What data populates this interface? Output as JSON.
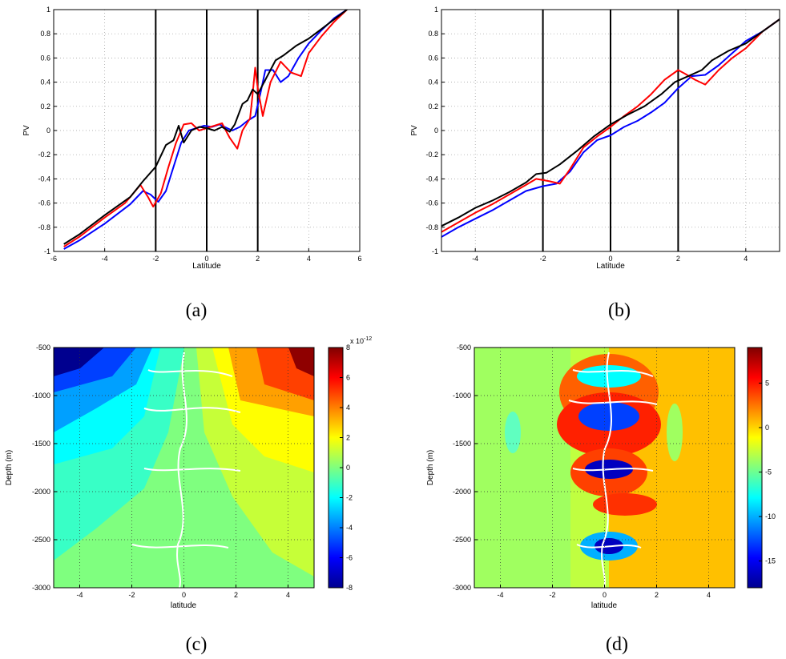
{
  "chart_data": [
    {
      "type": "line",
      "panel_label": "(a)",
      "xlabel": "Latitude",
      "ylabel": "PV",
      "xlim": [
        -6,
        6
      ],
      "ylim": [
        -1,
        1
      ],
      "xticks": [
        "-6",
        "-4",
        "-2",
        "0",
        "2",
        "4",
        "6"
      ],
      "yticks": [
        "-1",
        "-0.8",
        "-0.6",
        "-0.4",
        "-0.2",
        "0",
        "0.2",
        "0.4",
        "0.6",
        "0.8",
        "1"
      ],
      "grid": true,
      "vlines": [
        -2,
        0,
        2
      ],
      "series": [
        {
          "color": "#0000ff",
          "x": [
            -5.6,
            -5,
            -4,
            -3,
            -2.5,
            -2.2,
            -1.9,
            -1.6,
            -1.3,
            -1,
            -0.7,
            -0.4,
            -0.1,
            0.2,
            0.5,
            0.8,
            1,
            1.3,
            1.6,
            1.9,
            2.1,
            2.3,
            2.6,
            2.9,
            3.2,
            3.6,
            4,
            4.5,
            5,
            5.5
          ],
          "y": [
            -0.98,
            -0.91,
            -0.77,
            -0.61,
            -0.5,
            -0.53,
            -0.59,
            -0.5,
            -0.3,
            -0.1,
            0,
            0.02,
            0.04,
            0.03,
            0.05,
            0.02,
            0,
            0.03,
            0.08,
            0.12,
            0.3,
            0.5,
            0.5,
            0.4,
            0.45,
            0.6,
            0.72,
            0.83,
            0.93,
            1.0
          ]
        },
        {
          "color": "#ff0000",
          "x": [
            -5.6,
            -5,
            -4,
            -3.2,
            -2.8,
            -2.6,
            -2.3,
            -2.1,
            -1.8,
            -1.5,
            -1.2,
            -0.9,
            -0.6,
            -0.3,
            0,
            0.3,
            0.6,
            0.9,
            1.2,
            1.4,
            1.7,
            1.8,
            1.9,
            2,
            2.2,
            2.5,
            2.9,
            3.3,
            3.7,
            4,
            4.5,
            5,
            5.5
          ],
          "y": [
            -0.96,
            -0.88,
            -0.72,
            -0.6,
            -0.5,
            -0.45,
            -0.55,
            -0.63,
            -0.52,
            -0.3,
            -0.1,
            0.05,
            0.06,
            0.0,
            0.02,
            0.04,
            0.06,
            -0.06,
            -0.15,
            0.0,
            0.1,
            0.3,
            0.52,
            0.35,
            0.12,
            0.4,
            0.57,
            0.48,
            0.45,
            0.64,
            0.78,
            0.9,
            1.0
          ]
        },
        {
          "color": "#000000",
          "x": [
            -5.6,
            -5,
            -4,
            -3,
            -2.5,
            -2,
            -1.6,
            -1.3,
            -1.1,
            -0.9,
            -0.6,
            -0.3,
            0,
            0.3,
            0.6,
            0.9,
            1.1,
            1.4,
            1.6,
            1.8,
            2,
            2.3,
            2.7,
            3,
            3.5,
            4,
            4.5,
            5,
            5.5
          ],
          "y": [
            -0.94,
            -0.86,
            -0.7,
            -0.55,
            -0.42,
            -0.3,
            -0.12,
            -0.08,
            0.04,
            -0.1,
            0.0,
            0.03,
            0.02,
            0.0,
            0.03,
            -0.01,
            0.05,
            0.22,
            0.25,
            0.34,
            0.3,
            0.42,
            0.58,
            0.62,
            0.7,
            0.76,
            0.84,
            0.92,
            1.0
          ]
        }
      ]
    },
    {
      "type": "line",
      "panel_label": "(b)",
      "xlabel": "Latitude",
      "ylabel": "PV",
      "xlim": [
        -5,
        5
      ],
      "ylim": [
        -1,
        1
      ],
      "xticks": [
        "-4",
        "-2",
        "0",
        "2",
        "4"
      ],
      "yticks": [
        "-1",
        "-0.8",
        "-0.6",
        "-0.4",
        "-0.2",
        "0",
        "0.2",
        "0.4",
        "0.6",
        "0.8",
        "1"
      ],
      "grid": true,
      "vlines": [
        -2,
        0,
        2
      ],
      "series": [
        {
          "color": "#0000ff",
          "x": [
            -5,
            -4.5,
            -4,
            -3.5,
            -3,
            -2.5,
            -2,
            -1.6,
            -1.2,
            -0.8,
            -0.4,
            0,
            0.4,
            0.8,
            1.2,
            1.6,
            2,
            2.4,
            2.8,
            3.2,
            3.6,
            4,
            4.5,
            5
          ],
          "y": [
            -0.88,
            -0.8,
            -0.73,
            -0.66,
            -0.58,
            -0.5,
            -0.46,
            -0.44,
            -0.34,
            -0.18,
            -0.08,
            -0.04,
            0.03,
            0.08,
            0.15,
            0.23,
            0.35,
            0.45,
            0.46,
            0.54,
            0.64,
            0.74,
            0.82,
            0.92
          ]
        },
        {
          "color": "#ff0000",
          "x": [
            -5,
            -4.5,
            -4,
            -3.5,
            -3,
            -2.5,
            -2.2,
            -1.8,
            -1.5,
            -1.2,
            -0.8,
            -0.4,
            0,
            0.4,
            0.8,
            1.2,
            1.6,
            2,
            2.2,
            2.5,
            2.8,
            3.2,
            3.6,
            4,
            4.5,
            5
          ],
          "y": [
            -0.84,
            -0.76,
            -0.68,
            -0.61,
            -0.53,
            -0.45,
            -0.4,
            -0.42,
            -0.44,
            -0.32,
            -0.14,
            -0.05,
            0.03,
            0.12,
            0.2,
            0.3,
            0.42,
            0.5,
            0.47,
            0.42,
            0.38,
            0.5,
            0.6,
            0.68,
            0.82,
            0.92
          ]
        },
        {
          "color": "#000000",
          "x": [
            -5,
            -4.5,
            -4,
            -3.5,
            -3,
            -2.5,
            -2.2,
            -1.9,
            -1.5,
            -1,
            -0.5,
            0,
            0.5,
            1,
            1.5,
            1.9,
            2.3,
            2.7,
            3,
            3.5,
            4,
            4.5,
            5
          ],
          "y": [
            -0.79,
            -0.72,
            -0.64,
            -0.58,
            -0.51,
            -0.43,
            -0.36,
            -0.35,
            -0.28,
            -0.17,
            -0.05,
            0.05,
            0.13,
            0.2,
            0.3,
            0.4,
            0.45,
            0.5,
            0.58,
            0.66,
            0.72,
            0.82,
            0.92
          ]
        }
      ]
    },
    {
      "type": "heatmap",
      "panel_label": "(c)",
      "xlabel": "latitude",
      "ylabel": "Depth (m)",
      "xlim": [
        -5,
        5
      ],
      "ylim": [
        -3000,
        -500
      ],
      "xticks": [
        "-4",
        "-2",
        "0",
        "2",
        "4"
      ],
      "yticks": [
        "-3000",
        "-2500",
        "-2000",
        "-1500",
        "-1000",
        "-500"
      ],
      "grid": true,
      "colorbar": {
        "min": -8,
        "max": 8,
        "ticks": [
          "8",
          "6",
          "4",
          "2",
          "0",
          "-2",
          "-4",
          "-6",
          "-8"
        ],
        "exponent": "x 10",
        "exponent_power": "-12"
      }
    },
    {
      "type": "heatmap",
      "panel_label": "(d)",
      "xlabel": "latitude",
      "ylabel": "Depth (m)",
      "xlim": [
        -5,
        5
      ],
      "ylim": [
        -3000,
        -500
      ],
      "xticks": [
        "-4",
        "-2",
        "0",
        "2",
        "4"
      ],
      "yticks": [
        "-3000",
        "-2500",
        "-2000",
        "-1500",
        "-1000",
        "-500"
      ],
      "grid": true,
      "colorbar": {
        "min": -18,
        "max": 9,
        "ticks": [
          "5",
          "0",
          "-5",
          "-10",
          "-15"
        ]
      }
    }
  ]
}
